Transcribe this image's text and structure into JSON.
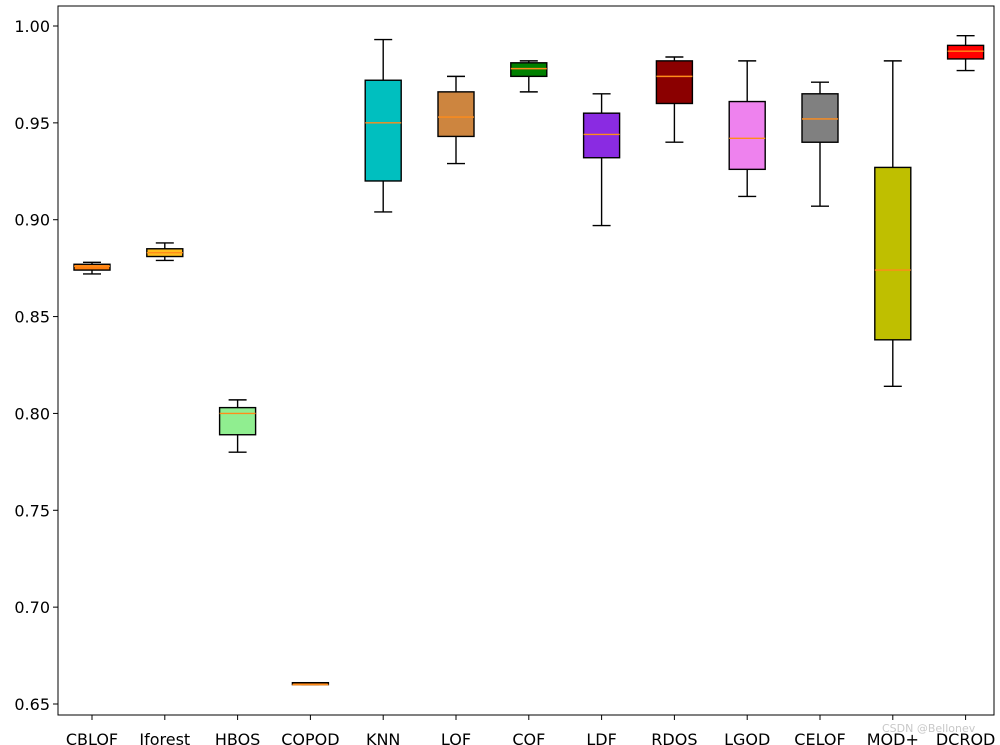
{
  "chart_data": {
    "type": "box",
    "title": "",
    "xlabel": "",
    "ylabel": "",
    "ylim": [
      0.645,
      1.01
    ],
    "yticks": [
      0.65,
      0.7,
      0.75,
      0.8,
      0.85,
      0.9,
      0.95,
      1.0
    ],
    "ytick_labels": [
      "0.65",
      "0.70",
      "0.75",
      "0.80",
      "0.85",
      "0.90",
      "0.95",
      "1.00"
    ],
    "grid": false,
    "legend": "none",
    "median_color": "#ff8c1a",
    "categories": [
      "CBLOF",
      "Iforest",
      "HBOS",
      "COPOD",
      "KNN",
      "LOF",
      "COF",
      "LDF",
      "RDOS",
      "LGOD",
      "CELOF",
      "MOD+",
      "DCROD"
    ],
    "boxes": [
      {
        "label": "CBLOF",
        "whisker_low": 0.872,
        "q1": 0.874,
        "median": 0.876,
        "q3": 0.877,
        "whisker_high": 0.878,
        "color": "#ff7f0e"
      },
      {
        "label": "Iforest",
        "whisker_low": 0.879,
        "q1": 0.881,
        "median": 0.883,
        "q3": 0.885,
        "whisker_high": 0.888,
        "color": "#ffbf1f"
      },
      {
        "label": "HBOS",
        "whisker_low": 0.78,
        "q1": 0.789,
        "median": 0.8,
        "q3": 0.803,
        "whisker_high": 0.807,
        "color": "#90ee90"
      },
      {
        "label": "COPOD",
        "whisker_low": 0.66,
        "q1": 0.66,
        "median": 0.66,
        "q3": 0.661,
        "whisker_high": 0.661,
        "color": "#ff7f0e"
      },
      {
        "label": "KNN",
        "whisker_low": 0.904,
        "q1": 0.92,
        "median": 0.95,
        "q3": 0.972,
        "whisker_high": 0.993,
        "color": "#00bfbf"
      },
      {
        "label": "LOF",
        "whisker_low": 0.929,
        "q1": 0.943,
        "median": 0.953,
        "q3": 0.966,
        "whisker_high": 0.974,
        "color": "#cd853f"
      },
      {
        "label": "COF",
        "whisker_low": 0.966,
        "q1": 0.974,
        "median": 0.978,
        "q3": 0.981,
        "whisker_high": 0.982,
        "color": "#008000"
      },
      {
        "label": "LDF",
        "whisker_low": 0.897,
        "q1": 0.932,
        "median": 0.944,
        "q3": 0.955,
        "whisker_high": 0.965,
        "color": "#8a2be2"
      },
      {
        "label": "RDOS",
        "whisker_low": 0.94,
        "q1": 0.96,
        "median": 0.974,
        "q3": 0.982,
        "whisker_high": 0.984,
        "color": "#8b0000"
      },
      {
        "label": "LGOD",
        "whisker_low": 0.912,
        "q1": 0.926,
        "median": 0.942,
        "q3": 0.961,
        "whisker_high": 0.982,
        "color": "#ee82ee"
      },
      {
        "label": "CELOF",
        "whisker_low": 0.907,
        "q1": 0.94,
        "median": 0.952,
        "q3": 0.965,
        "whisker_high": 0.971,
        "color": "#808080"
      },
      {
        "label": "MOD+",
        "whisker_low": 0.814,
        "q1": 0.838,
        "median": 0.874,
        "q3": 0.927,
        "whisker_high": 0.982,
        "color": "#bfbf00"
      },
      {
        "label": "DCROD",
        "whisker_low": 0.977,
        "q1": 0.983,
        "median": 0.987,
        "q3": 0.99,
        "whisker_high": 0.995,
        "color": "#ff0000"
      }
    ]
  },
  "watermark": "CSDN @Bellonev"
}
